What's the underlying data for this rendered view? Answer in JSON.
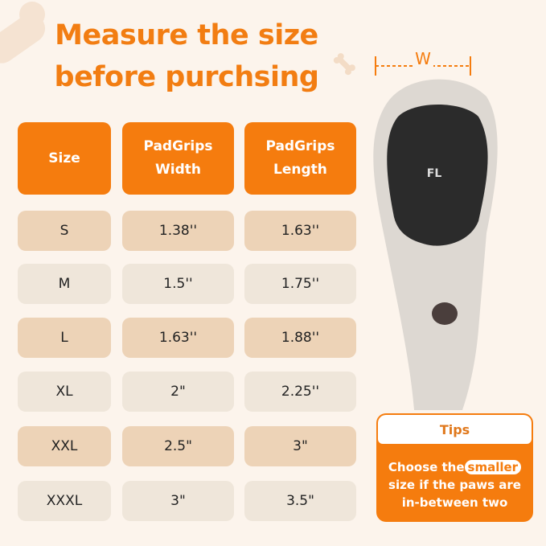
{
  "title": {
    "line1": "Measure the size",
    "line2": "before purchsing"
  },
  "table": {
    "headers": [
      {
        "l1": "Size",
        "l2": ""
      },
      {
        "l1": "PadGrips",
        "l2": "Width"
      },
      {
        "l1": "PadGrips",
        "l2": "Length"
      }
    ],
    "rows": [
      [
        "S",
        "1.38''",
        "1.63''"
      ],
      [
        "M",
        "1.5''",
        "1.75''"
      ],
      [
        "L",
        "1.63''",
        "1.88''"
      ],
      [
        "XL",
        "2\"",
        "2.25''"
      ],
      [
        "XXL",
        "2.5\"",
        "3\""
      ],
      [
        "XXXL",
        "3\"",
        "3.5\""
      ]
    ]
  },
  "diagram": {
    "width_label": "W",
    "logo_text": "FL"
  },
  "tips": {
    "title": "Tips",
    "pre": "Choose the",
    "highlight": "smaller",
    "post1": "size if the paws are",
    "post2": "in-between two"
  },
  "colors": {
    "accent": "#f57c0e",
    "row_tan": "#edd3b7",
    "row_light": "#efe6da",
    "background": "#fcf4ec"
  }
}
